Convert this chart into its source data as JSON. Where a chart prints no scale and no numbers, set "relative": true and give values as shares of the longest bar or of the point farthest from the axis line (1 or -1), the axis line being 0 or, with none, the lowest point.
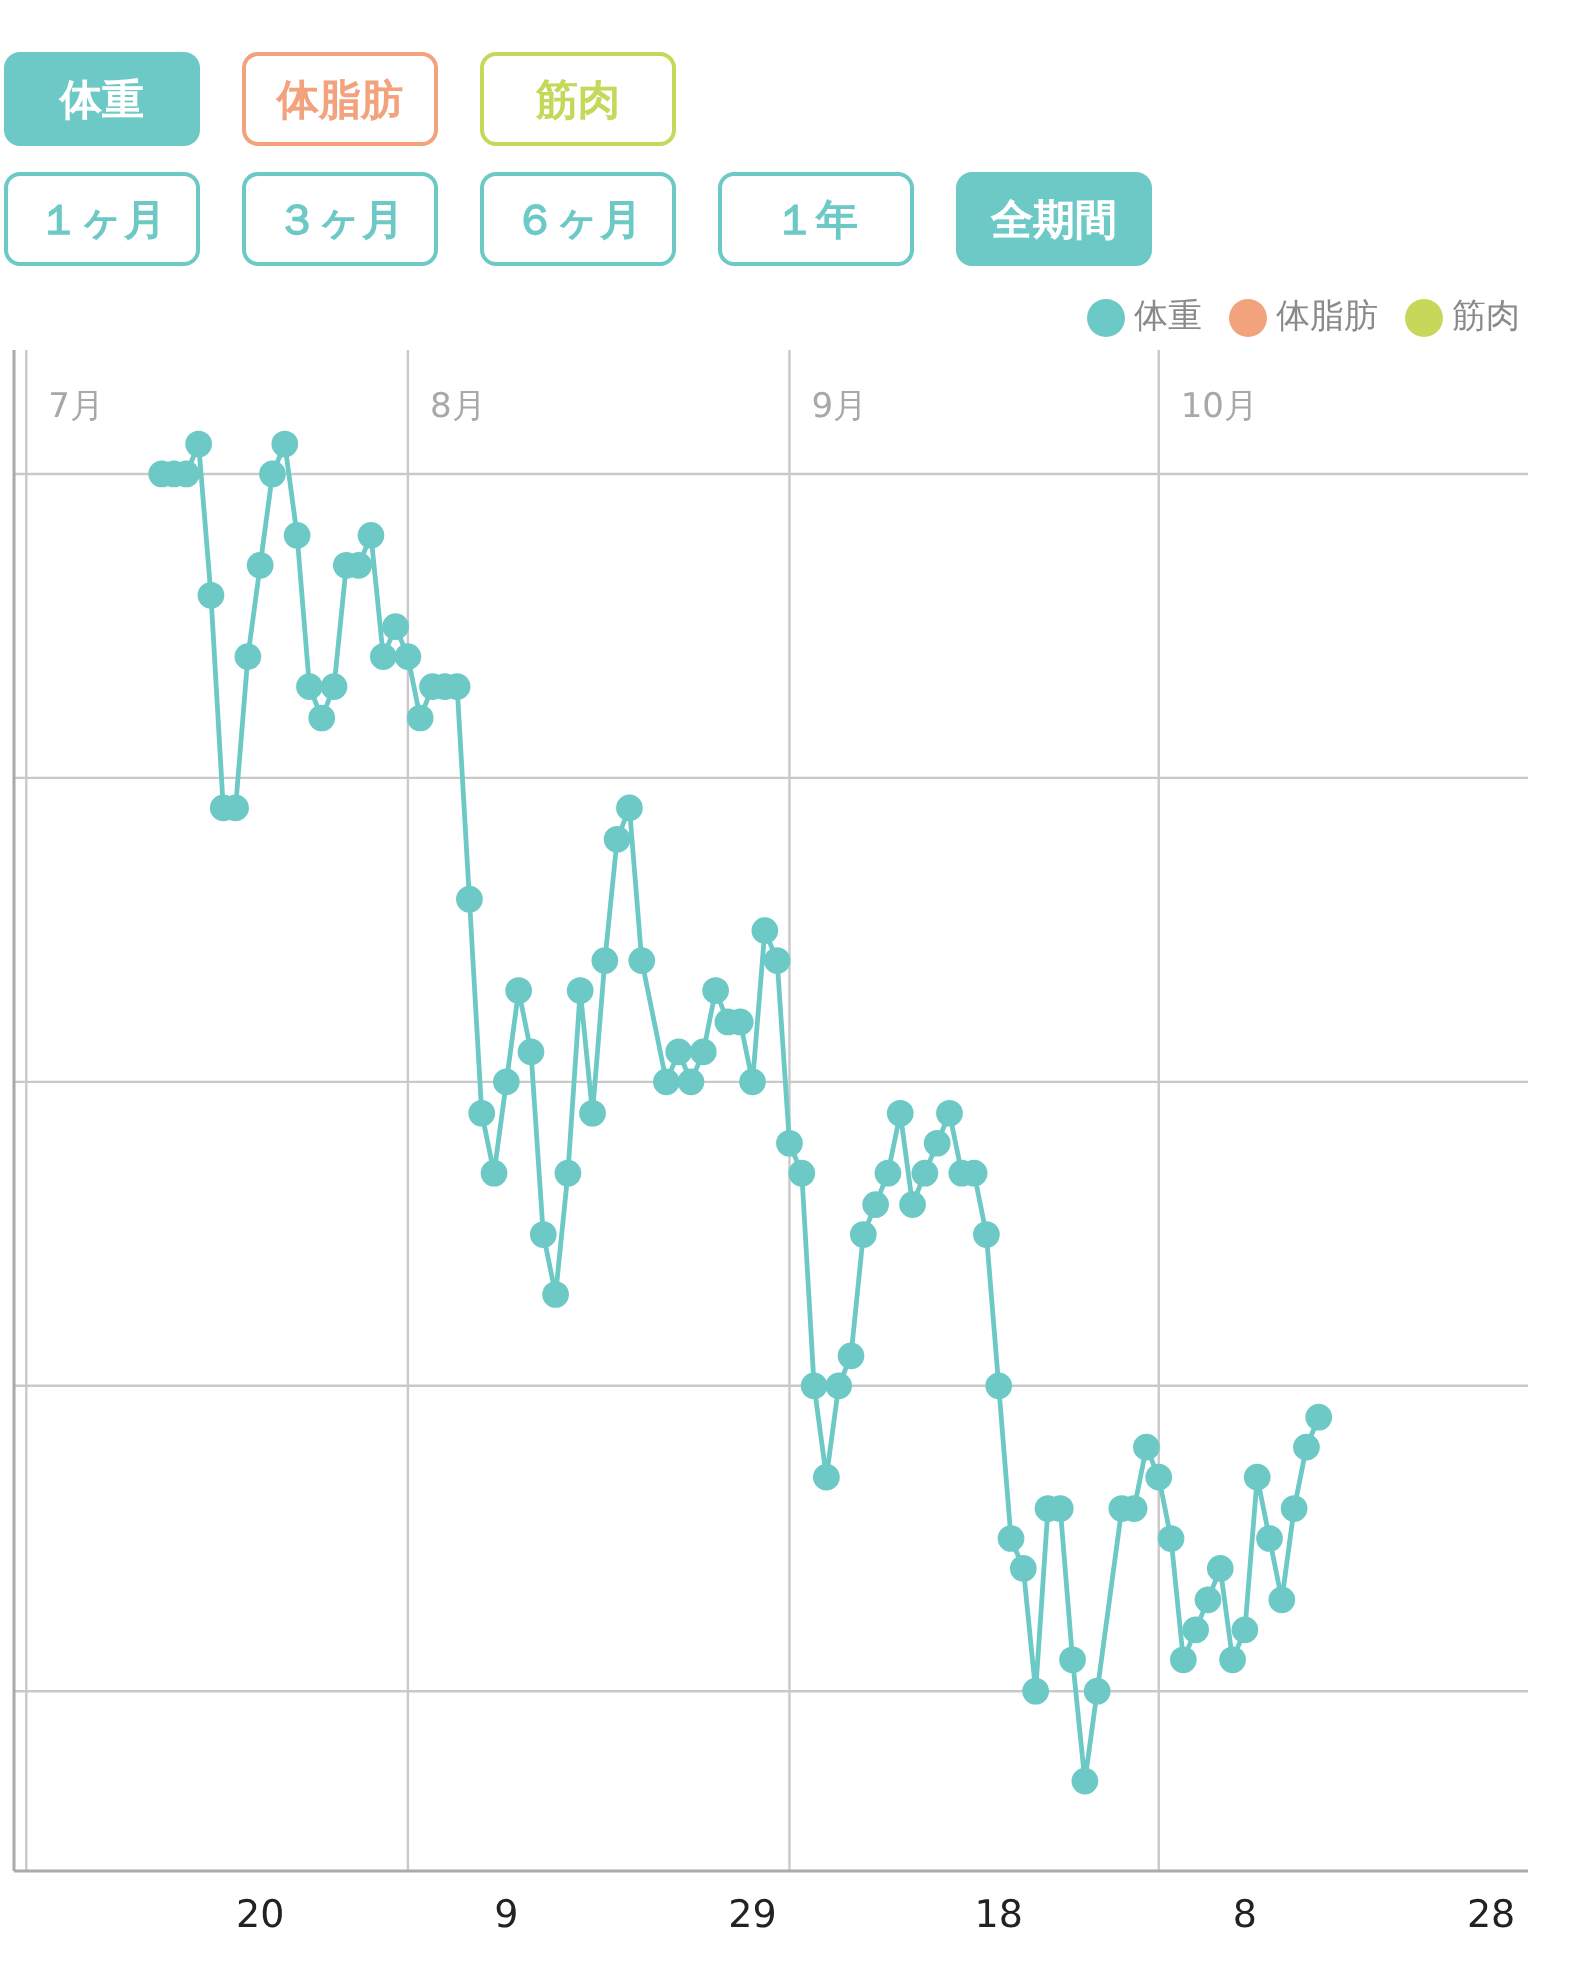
{
  "chart_data": {
    "type": "line",
    "relative": true,
    "legend": "top right",
    "marker": "circle",
    "line_style": "solid",
    "xlim": [
      "--06-30",
      "--10-31"
    ],
    "xticks": [
      {
        "value": "--07-20",
        "label": "20"
      },
      {
        "value": "--08-09",
        "label": "9"
      },
      {
        "value": "--08-29",
        "label": "29"
      },
      {
        "value": "--09-18",
        "label": "18"
      },
      {
        "value": "--10-08",
        "label": "8"
      },
      {
        "value": "--10-28",
        "label": "28"
      }
    ],
    "ref_lines": [
      {
        "axis": "x",
        "value": "--07-01",
        "label": "7月"
      },
      {
        "axis": "x",
        "value": "--08-01",
        "label": "8月"
      },
      {
        "axis": "x",
        "value": "--09-01",
        "label": "9月"
      },
      {
        "axis": "x",
        "value": "--10-01",
        "label": "10月"
      },
      {
        "axis": "y",
        "value": 0.979
      },
      {
        "axis": "y",
        "value": 0.766
      },
      {
        "axis": "y",
        "value": 0.553
      },
      {
        "axis": "y",
        "value": 0.34
      },
      {
        "axis": "y",
        "value": 0.126
      }
    ],
    "annotations": [
      "１ヶ月",
      "３ヶ月",
      "６ヶ月",
      "１年",
      "全期間"
    ],
    "series": [
      {
        "name": "体重",
        "color": "#6cc9c6",
        "x": [
          "--07-12",
          "--07-13",
          "--07-14",
          "--07-15",
          "--07-16",
          "--07-17",
          "--07-18",
          "--07-19",
          "--07-20",
          "--07-21",
          "--07-22",
          "--07-23",
          "--07-24",
          "--07-25",
          "--07-26",
          "--07-27",
          "--07-28",
          "--07-29",
          "--07-30",
          "--07-31",
          "--08-01",
          "--08-02",
          "--08-03",
          "--08-04",
          "--08-05",
          "--08-06",
          "--08-07",
          "--08-08",
          "--08-09",
          "--08-10",
          "--08-11",
          "--08-12",
          "--08-13",
          "--08-14",
          "--08-15",
          "--08-16",
          "--08-17",
          "--08-18",
          "--08-19",
          "--08-20",
          "--08-22",
          "--08-23",
          "--08-24",
          "--08-25",
          "--08-26",
          "--08-27",
          "--08-28",
          "--08-29",
          "--08-30",
          "--08-31",
          "--09-01",
          "--09-02",
          "--09-03",
          "--09-04",
          "--09-05",
          "--09-06",
          "--09-07",
          "--09-08",
          "--09-09",
          "--09-10",
          "--09-11",
          "--09-12",
          "--09-13",
          "--09-14",
          "--09-15",
          "--09-16",
          "--09-17",
          "--09-18",
          "--09-19",
          "--09-20",
          "--09-21",
          "--09-22",
          "--09-23",
          "--09-24",
          "--09-25",
          "--09-26",
          "--09-28",
          "--09-29",
          "--09-30",
          "--10-01",
          "--10-02",
          "--10-03",
          "--10-04",
          "--10-05",
          "--10-06",
          "--10-07",
          "--10-08",
          "--10-09",
          "--10-10",
          "--10-11",
          "--10-12",
          "--10-13",
          "--10-14"
        ],
        "values": [
          0.979,
          0.979,
          0.979,
          1.0,
          0.894,
          0.745,
          0.745,
          0.851,
          0.915,
          0.979,
          1.0,
          0.936,
          0.83,
          0.808,
          0.83,
          0.915,
          0.915,
          0.936,
          0.851,
          0.872,
          0.851,
          0.808,
          0.83,
          0.83,
          0.83,
          0.681,
          0.531,
          0.489,
          0.553,
          0.617,
          0.574,
          0.446,
          0.404,
          0.489,
          0.617,
          0.531,
          0.638,
          0.723,
          0.745,
          0.638,
          0.553,
          0.574,
          0.553,
          0.574,
          0.617,
          0.595,
          0.595,
          0.553,
          0.659,
          0.638,
          0.51,
          0.489,
          0.34,
          0.276,
          0.34,
          0.361,
          0.446,
          0.467,
          0.489,
          0.531,
          0.467,
          0.489,
          0.51,
          0.531,
          0.489,
          0.489,
          0.446,
          0.34,
          0.233,
          0.212,
          0.126,
          0.254,
          0.254,
          0.148,
          0.063,
          0.126,
          0.254,
          0.254,
          0.297,
          0.276,
          0.233,
          0.148,
          0.169,
          0.19,
          0.212,
          0.148,
          0.169,
          0.276,
          0.233,
          0.19,
          0.254,
          0.297,
          0.318
        ]
      },
      {
        "name": "体脂肪",
        "color": "#f2a27c"
      },
      {
        "name": "筋肉",
        "color": "#c6d85a"
      }
    ]
  }
}
